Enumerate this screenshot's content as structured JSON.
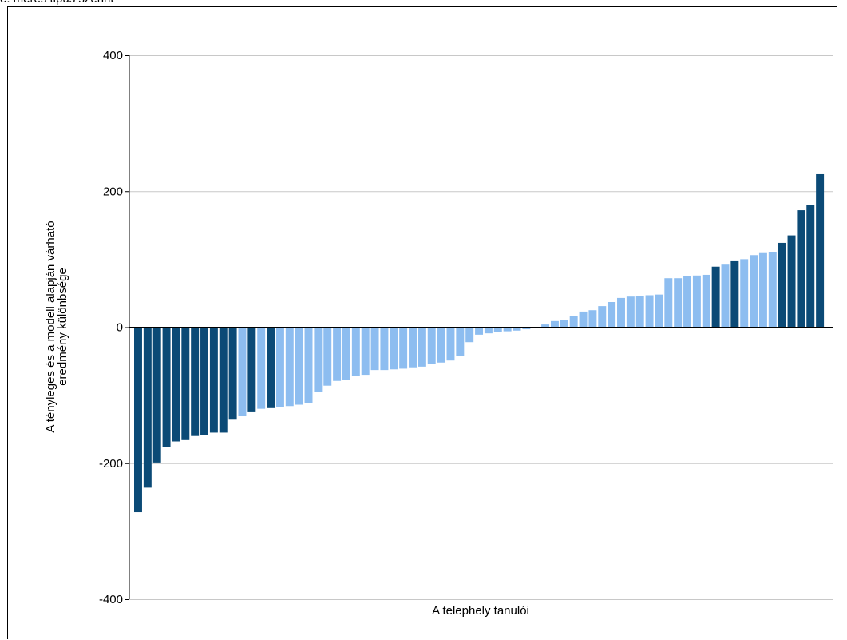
{
  "page": {
    "top_caption": "e. mérés tipus szerint"
  },
  "chart_data": {
    "type": "bar",
    "xlabel": "A telephely tanulói",
    "ylabel_lines": [
      "A tényleges és a modell alapján várható",
      "eredmény különbsége"
    ],
    "ylim": [
      -400,
      400
    ],
    "yticks": [
      400,
      200,
      0,
      -200,
      -400
    ],
    "ytick_labels": [
      "400",
      "200",
      "0",
      "-200",
      "-400"
    ],
    "grid": true,
    "colors": {
      "dark": "#0b4a76",
      "light": "#8dbdf0"
    },
    "values": [
      -272,
      -236,
      -199,
      -176,
      -168,
      -166,
      -160,
      -159,
      -155,
      -155,
      -136,
      -131,
      -125,
      -120,
      -119,
      -118,
      -116,
      -114,
      -112,
      -95,
      -86,
      -79,
      -78,
      -72,
      -70,
      -63,
      -63,
      -62,
      -61,
      -59,
      -58,
      -54,
      -52,
      -49,
      -42,
      -22,
      -11,
      -9,
      -7,
      -6,
      -5,
      -3,
      0,
      4,
      9,
      11,
      16,
      23,
      25,
      31,
      37,
      43,
      45,
      46,
      47,
      48,
      72,
      72,
      75,
      76,
      77,
      89,
      92,
      97,
      100,
      106,
      109,
      111,
      124,
      135,
      172,
      180,
      225
    ],
    "highlight": [
      "dark",
      "dark",
      "dark",
      "dark",
      "dark",
      "dark",
      "dark",
      "dark",
      "dark",
      "dark",
      "dark",
      "light",
      "dark",
      "light",
      "dark",
      "light",
      "light",
      "light",
      "light",
      "light",
      "light",
      "light",
      "light",
      "light",
      "light",
      "light",
      "light",
      "light",
      "light",
      "light",
      "light",
      "light",
      "light",
      "light",
      "light",
      "light",
      "light",
      "light",
      "light",
      "light",
      "light",
      "light",
      "light",
      "light",
      "light",
      "light",
      "light",
      "light",
      "light",
      "light",
      "light",
      "light",
      "light",
      "light",
      "light",
      "light",
      "light",
      "light",
      "light",
      "light",
      "light",
      "dark",
      "light",
      "dark",
      "light",
      "light",
      "light",
      "light",
      "dark",
      "dark",
      "dark",
      "dark",
      "dark"
    ]
  }
}
